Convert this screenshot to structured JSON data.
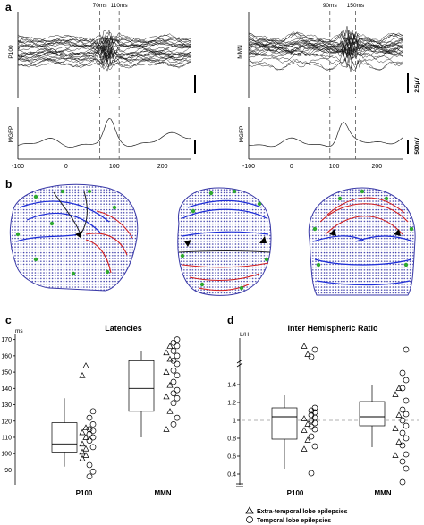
{
  "panels": {
    "a": {
      "label": "a",
      "left": {
        "trace_label": "P100",
        "gfp_label": "MGFP",
        "marker1": "70ms",
        "marker2": "110ms",
        "marker1_value": 70,
        "marker2_value": 110,
        "xticks": [
          "-100",
          "0",
          "100",
          "200"
        ],
        "xtick_values": [
          -100,
          0,
          100,
          200
        ],
        "xrange": [
          -100,
          260
        ]
      },
      "right": {
        "trace_label": "MMN",
        "gfp_label": "MGFP",
        "marker1": "90ms",
        "marker2": "150ms",
        "marker1_value": 90,
        "marker2_value": 150,
        "scale_top": "2.5μV",
        "scale_bottom": "500nV",
        "xticks": [
          "-100",
          "0",
          "100",
          "200"
        ],
        "xtick_values": [
          -100,
          0,
          100,
          200
        ],
        "xrange": [
          -100,
          260
        ]
      }
    },
    "b": {
      "label": "b"
    },
    "c": {
      "label": "c"
    },
    "d": {
      "label": "d"
    }
  },
  "chart_data": [
    {
      "type": "box",
      "title": "Latencies",
      "ylabel": "ms",
      "ylim": [
        82,
        172
      ],
      "yticks": [
        "90",
        "100",
        "110",
        "120",
        "130",
        "140",
        "150",
        "160",
        "170"
      ],
      "ytick_values": [
        90,
        100,
        110,
        120,
        130,
        140,
        150,
        160,
        170
      ],
      "categories": [
        "P100",
        "MMN"
      ],
      "boxes": [
        {
          "whisker_low": 92,
          "q1": 101,
          "median": 106,
          "q3": 119,
          "whisker_high": 134
        },
        {
          "whisker_low": 110,
          "q1": 126,
          "median": 140,
          "q3": 157,
          "whisker_high": 163
        }
      ],
      "series": [
        {
          "name": "Extra-temporal lobe epilepsies",
          "values": [
            [
              97,
              99,
              101,
              103,
              106,
              110,
              113,
              116,
              148,
              154
            ],
            [
              115,
              126,
              135,
              142,
              150,
              158,
              162,
              166
            ]
          ]
        },
        {
          "name": "Temporal lobe epilepsies",
          "values": [
            [
              86,
              89,
              93,
              104,
              108,
              110,
              112,
              114,
              115,
              118,
              122,
              126
            ],
            [
              118,
              122,
              131,
              134,
              137,
              139,
              144,
              148,
              151,
              155,
              157,
              160,
              163,
              166,
              168,
              170
            ]
          ]
        }
      ]
    },
    {
      "type": "box",
      "title": "Inter Hemispheric Ratio",
      "ylabel": "L/H",
      "ylim": [
        0.3,
        1.9
      ],
      "yticks": [
        "0.4",
        "0.6",
        "0.8",
        "1",
        "1.2",
        "1.4"
      ],
      "ytick_values": [
        0.4,
        0.6,
        0.8,
        1.0,
        1.2,
        1.4
      ],
      "reference_line": 1,
      "categories": [
        "P100",
        "MMN"
      ],
      "boxes": [
        {
          "whisker_low": 0.46,
          "q1": 0.79,
          "median": 1.04,
          "q3": 1.14,
          "whisker_high": 1.28
        },
        {
          "whisker_low": 0.7,
          "q1": 0.94,
          "median": 1.04,
          "q3": 1.21,
          "whisker_high": 1.39
        }
      ],
      "series": [
        {
          "name": "Extra-temporal lobe epilepsies",
          "values": [
            [
              0.68,
              0.78,
              0.89,
              0.96,
              1.02,
              1.74,
              1.83
            ],
            [
              0.61,
              0.76,
              0.91,
              1.06,
              1.29,
              1.36
            ]
          ]
        },
        {
          "name": "Temporal lobe epilepsies",
          "values": [
            [
              0.41,
              0.71,
              0.82,
              0.9,
              0.93,
              0.97,
              1.0,
              1.03,
              1.06,
              1.09,
              1.11,
              1.14,
              1.71,
              1.79
            ],
            [
              0.31,
              0.46,
              0.54,
              0.62,
              0.72,
              0.8,
              0.86,
              0.94,
              1.0,
              1.07,
              1.12,
              1.22,
              1.36,
              1.45,
              1.53,
              1.79
            ]
          ]
        }
      ]
    }
  ]
}
